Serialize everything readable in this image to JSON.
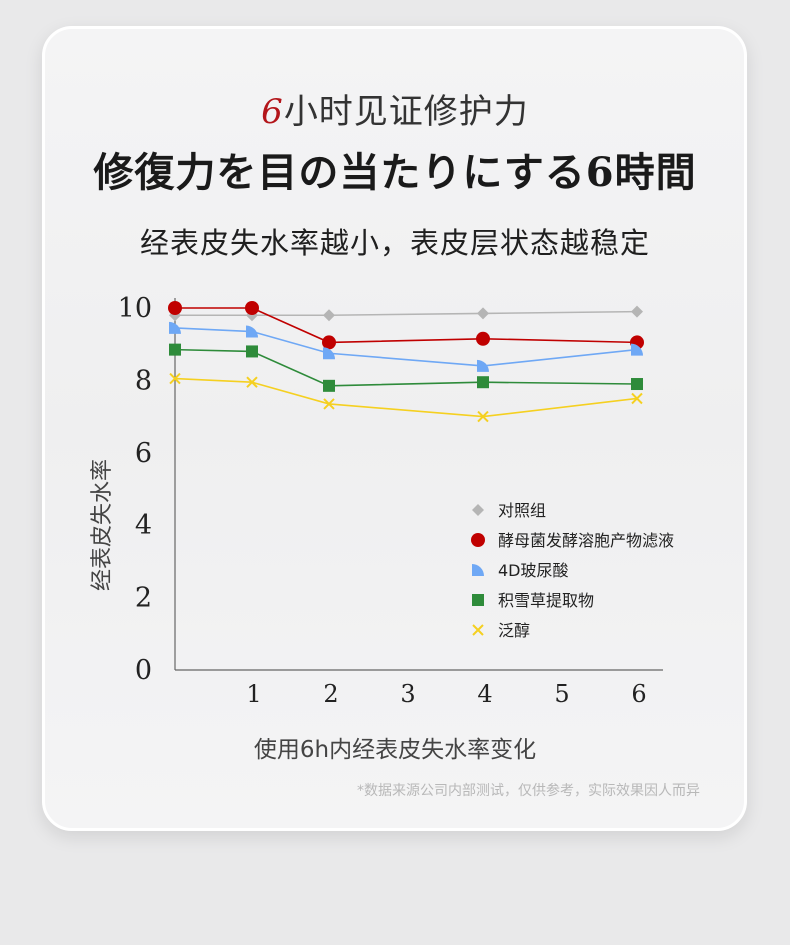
{
  "header": {
    "title_cn_num": "6",
    "title_cn_rest": "小时见证修护力",
    "title_jp": "修復力を目の当たりにする6時間",
    "subtitle": "经表皮失水率越小，表皮层状态越稳定"
  },
  "footnote": "*数据来源公司内部测试，仅供参考，实际效果因人而异",
  "colors": {
    "accent_red": "#b3151a",
    "underline": "#d97a7b"
  },
  "chart_data": {
    "type": "line",
    "xlabel": "使用6h内经表皮失水率变化",
    "ylabel": "经表皮失水率",
    "xlim": [
      0,
      6.5
    ],
    "ylim": [
      0,
      10
    ],
    "x_ticks": [
      1,
      2,
      3,
      4,
      5,
      6
    ],
    "y_ticks": [
      0,
      2,
      4,
      6,
      8,
      10
    ],
    "legend_position": "right-center",
    "x": [
      0,
      1,
      2,
      4,
      6
    ],
    "series": [
      {
        "name": "对照组",
        "marker": "diamond",
        "color": "#b5b5b5",
        "values": [
          9.8,
          9.8,
          9.8,
          9.85,
          9.9
        ]
      },
      {
        "name": "酵母菌发酵溶胞产物滤液",
        "marker": "circle",
        "color": "#c00000",
        "values": [
          10.0,
          10.0,
          9.05,
          9.15,
          9.05
        ]
      },
      {
        "name": "4D玻尿酸",
        "marker": "quarter",
        "color": "#6fa8f5",
        "values": [
          9.45,
          9.35,
          8.75,
          8.4,
          8.85
        ]
      },
      {
        "name": "积雪草提取物",
        "marker": "square",
        "color": "#2e8b3a",
        "values": [
          8.85,
          8.8,
          7.85,
          7.95,
          7.9
        ]
      },
      {
        "name": "泛醇",
        "marker": "x",
        "color": "#f5d020",
        "values": [
          8.05,
          7.95,
          7.35,
          7.0,
          7.5
        ]
      }
    ]
  }
}
